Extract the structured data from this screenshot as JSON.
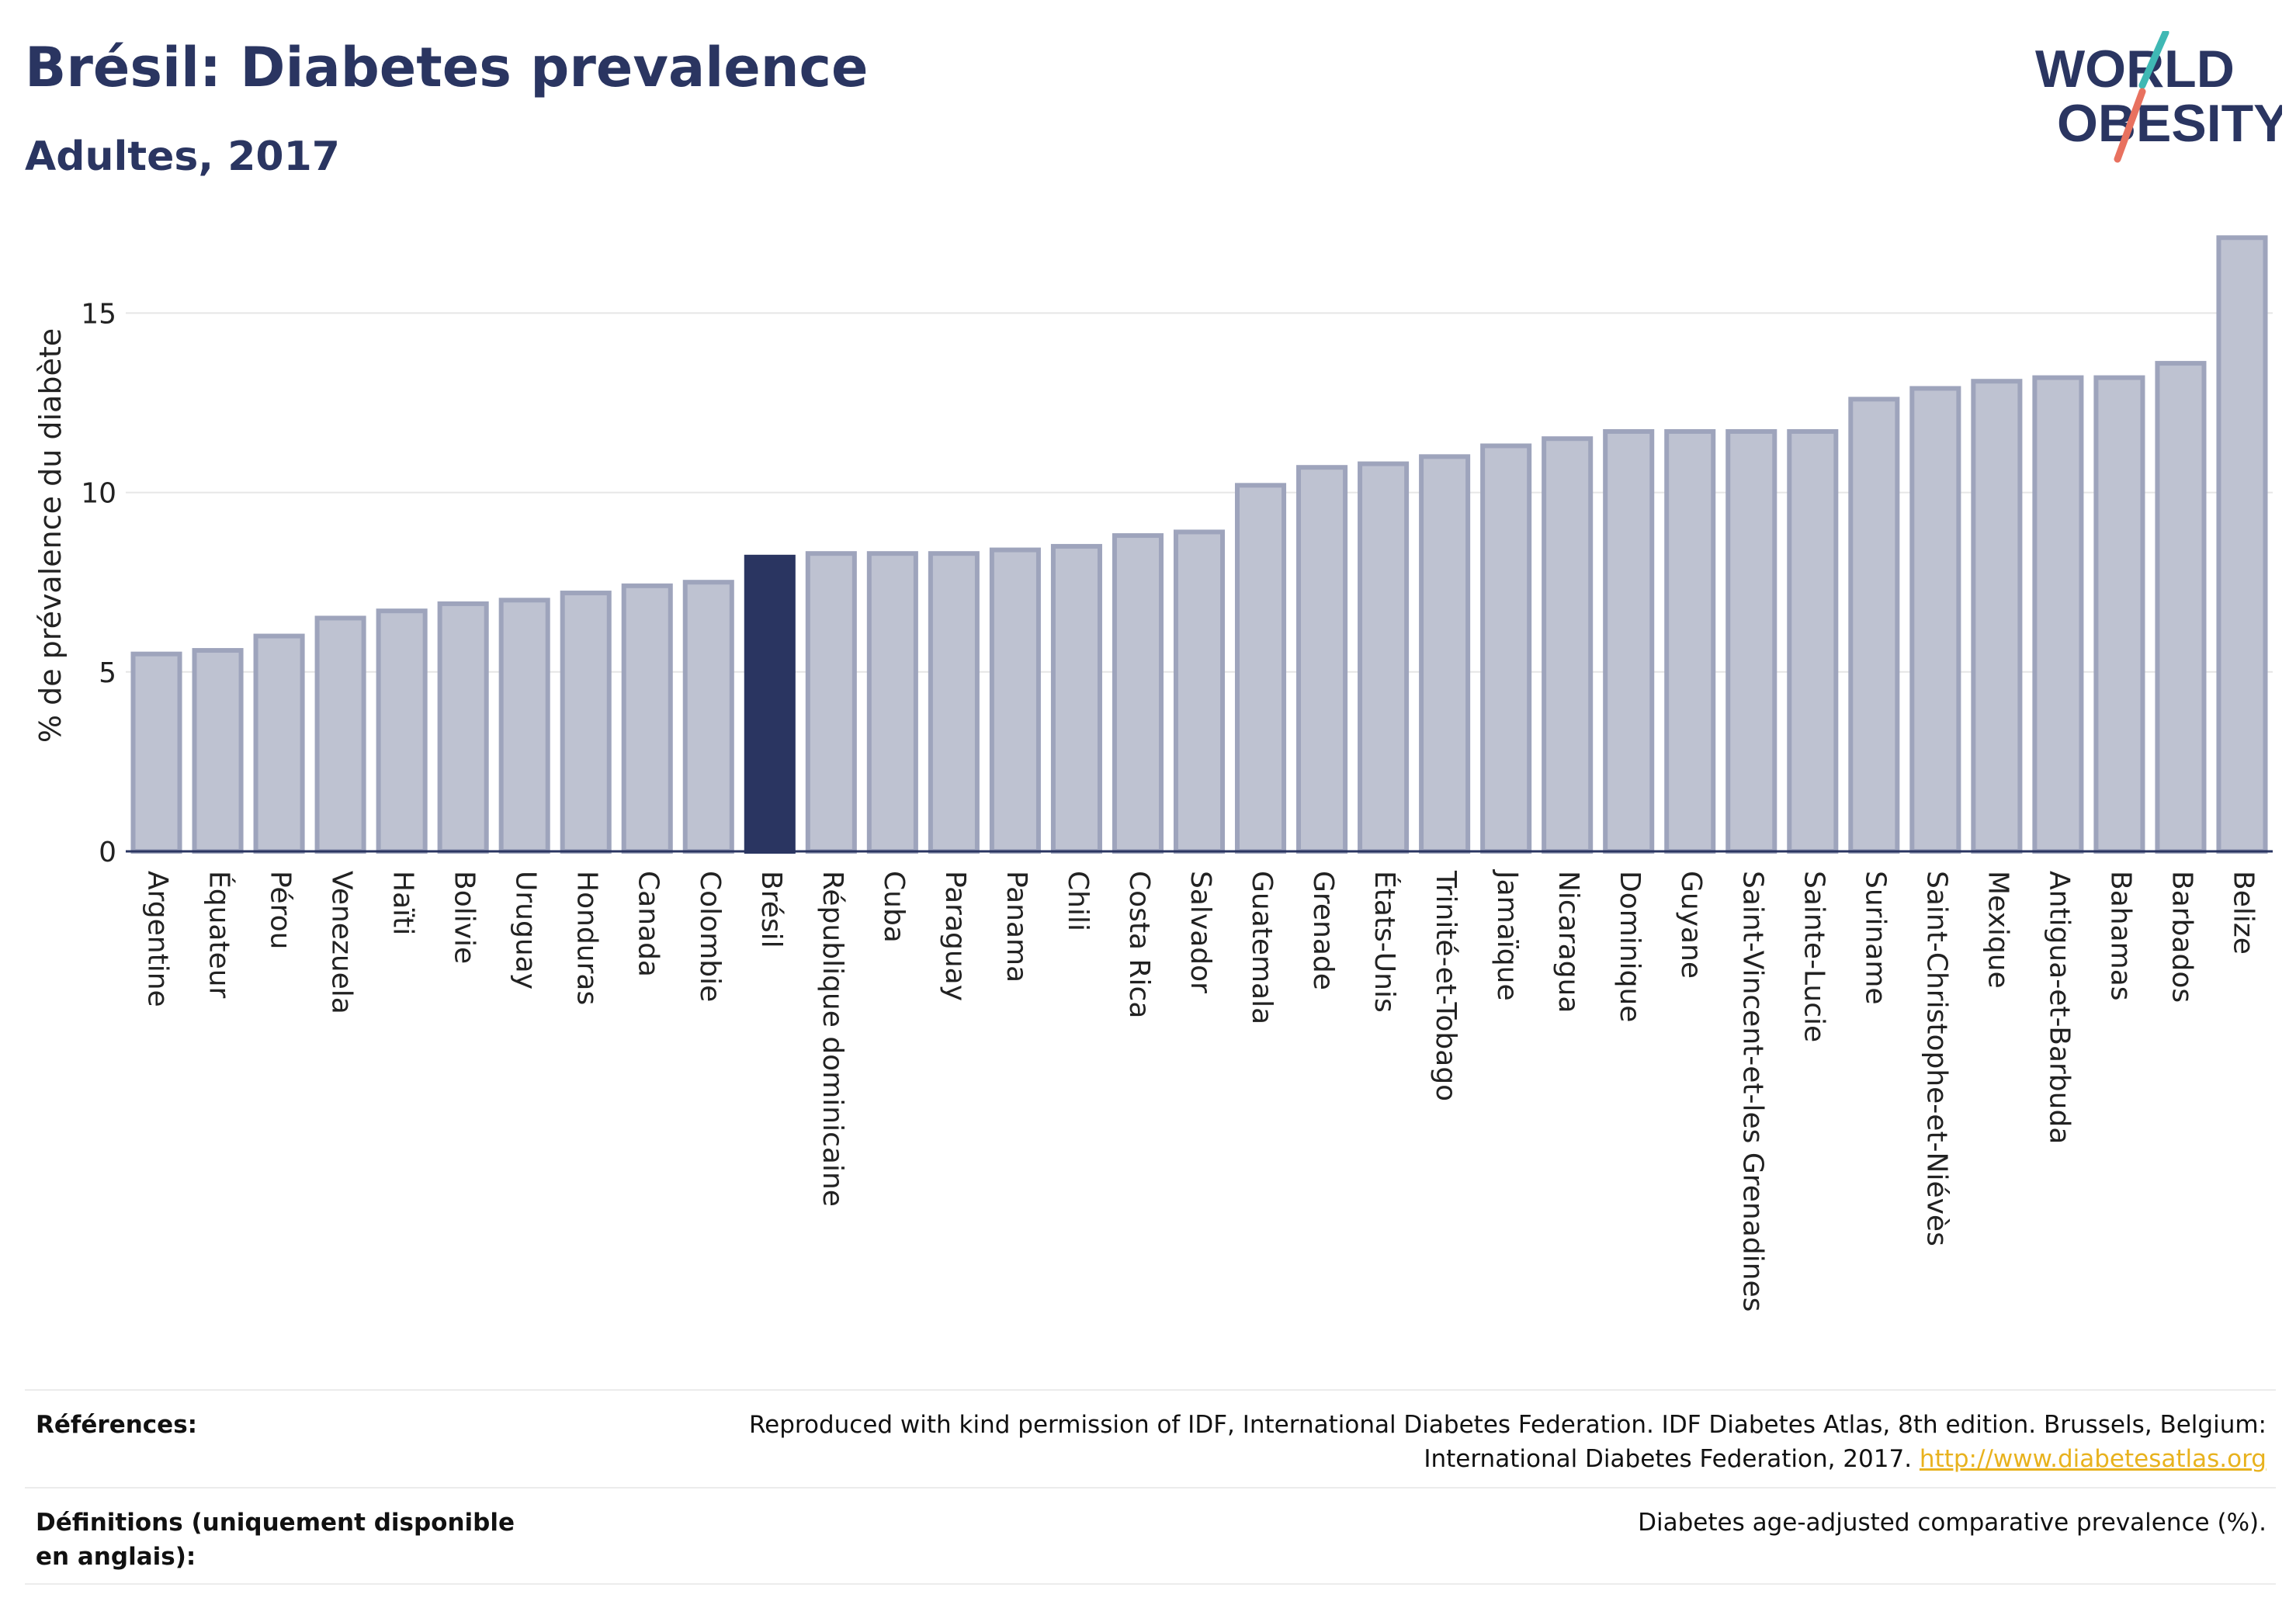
{
  "header": {
    "title": "Brésil: Diabetes prevalence",
    "subtitle": "Adultes, 2017"
  },
  "logo": {
    "line1": "WORLD",
    "line2": "OBESITY"
  },
  "colors": {
    "highlight": "#2a3561",
    "bar_fill": "#bec2d1",
    "bar_stroke": "#9ea4bc",
    "link": "#e8b21e"
  },
  "chart_data": {
    "type": "bar",
    "title": "Brésil: Diabetes prevalence",
    "subtitle": "Adultes, 2017",
    "ylabel": "% de prévalence du diabète",
    "xlabel": "",
    "ylim": [
      0,
      17.3
    ],
    "yticks": [
      0,
      5,
      10,
      15
    ],
    "grid": true,
    "highlight": "Brésil",
    "categories": [
      "Argentine",
      "Équateur",
      "Pérou",
      "Venezuela",
      "Haïti",
      "Bolivie",
      "Uruguay",
      "Honduras",
      "Canada",
      "Colombie",
      "Brésil",
      "République dominicaine",
      "Cuba",
      "Paraguay",
      "Panama",
      "Chili",
      "Costa Rica",
      "Salvador",
      "Guatemala",
      "Grenade",
      "États-Unis",
      "Trinité-et-Tobago",
      "Jamaïque",
      "Nicaragua",
      "Dominique",
      "Guyane",
      "Saint-Vincent-et-les Grenadines",
      "Sainte-Lucie",
      "Suriname",
      "Saint-Christophe-et-Niévès",
      "Mexique",
      "Antigua-et-Barbuda",
      "Bahamas",
      "Barbados",
      "Belize"
    ],
    "values": [
      5.5,
      5.6,
      6.0,
      6.5,
      6.7,
      6.9,
      7.0,
      7.2,
      7.4,
      7.5,
      8.2,
      8.3,
      8.3,
      8.3,
      8.4,
      8.5,
      8.8,
      8.9,
      10.2,
      10.7,
      10.8,
      11.0,
      11.3,
      11.5,
      11.7,
      11.7,
      11.7,
      11.7,
      12.6,
      12.9,
      13.1,
      13.2,
      13.2,
      13.6,
      17.1
    ]
  },
  "footer": {
    "references_label": "Références:",
    "references_line1": "Reproduced with kind permission of IDF, International Diabetes Federation. IDF Diabetes Atlas, 8th edition. Brussels, Belgium:",
    "references_line2": "International Diabetes Federation, 2017.",
    "references_link": "http://www.diabetesatlas.org",
    "definitions_label": "Définitions (uniquement disponible en anglais):",
    "definitions_value": "Diabetes age-adjusted comparative prevalence (%)."
  }
}
